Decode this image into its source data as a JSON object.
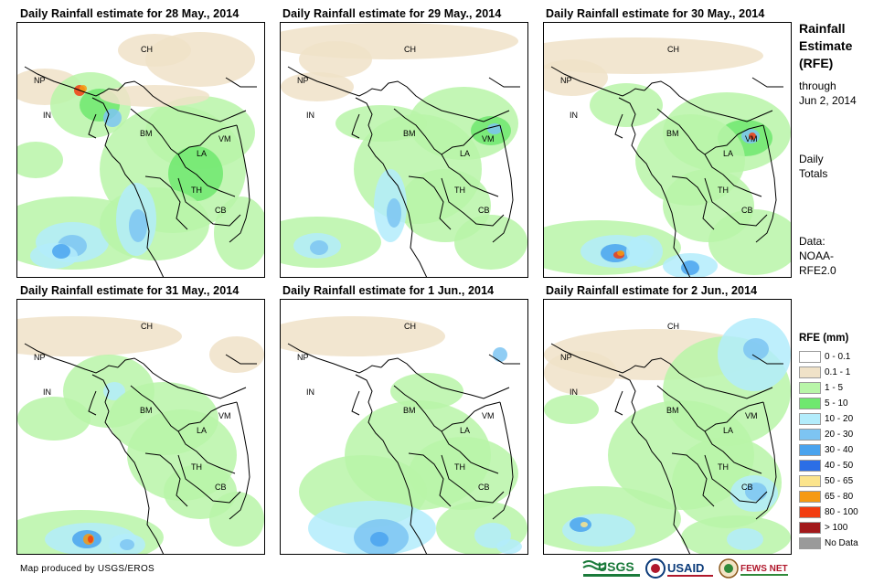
{
  "panels": [
    {
      "title": "Daily Rainfall estimate for 28 May., 2014"
    },
    {
      "title": "Daily Rainfall estimate for 29 May., 2014"
    },
    {
      "title": "Daily Rainfall estimate for 30 May., 2014"
    },
    {
      "title": "Daily Rainfall estimate for 31 May., 2014"
    },
    {
      "title": "Daily Rainfall estimate for 1 Jun., 2014"
    },
    {
      "title": "Daily Rainfall estimate for 2 Jun., 2014"
    }
  ],
  "country_labels": [
    "CH",
    "NP",
    "IN",
    "BM",
    "LA",
    "VM",
    "TH",
    "CB"
  ],
  "side": {
    "title_lines": [
      "Rainfall",
      "Estimate",
      "(RFE)"
    ],
    "through": "through",
    "date": "Jun 2, 2014",
    "daily": "Daily",
    "totals": "Totals",
    "data_label": "Data:",
    "data_src1": "NOAA-",
    "data_src2": "RFE2.0"
  },
  "legend": {
    "title": "RFE (mm)",
    "items": [
      {
        "label": "0 - 0.1",
        "color": "#ffffff"
      },
      {
        "label": "0.1 - 1",
        "color": "#f0e2c8"
      },
      {
        "label": "1 - 5",
        "color": "#b8f5a8"
      },
      {
        "label": "5 - 10",
        "color": "#6fe86f"
      },
      {
        "label": "10 - 20",
        "color": "#b3ecfb"
      },
      {
        "label": "20 - 30",
        "color": "#7dc4f2"
      },
      {
        "label": "30 - 40",
        "color": "#4aa3ee"
      },
      {
        "label": "40 - 50",
        "color": "#2b6ee6"
      },
      {
        "label": "50 - 65",
        "color": "#fbe48c"
      },
      {
        "label": "65 - 80",
        "color": "#f69a12"
      },
      {
        "label": "80 - 100",
        "color": "#f23c10"
      },
      {
        "label": "> 100",
        "color": "#a2181a"
      },
      {
        "label": "No Data",
        "color": "#9a9a9a"
      }
    ]
  },
  "footer": {
    "credit": "Map produced by USGS/EROS",
    "logos": [
      "USGS",
      "USAID",
      "FEWS NET"
    ]
  }
}
